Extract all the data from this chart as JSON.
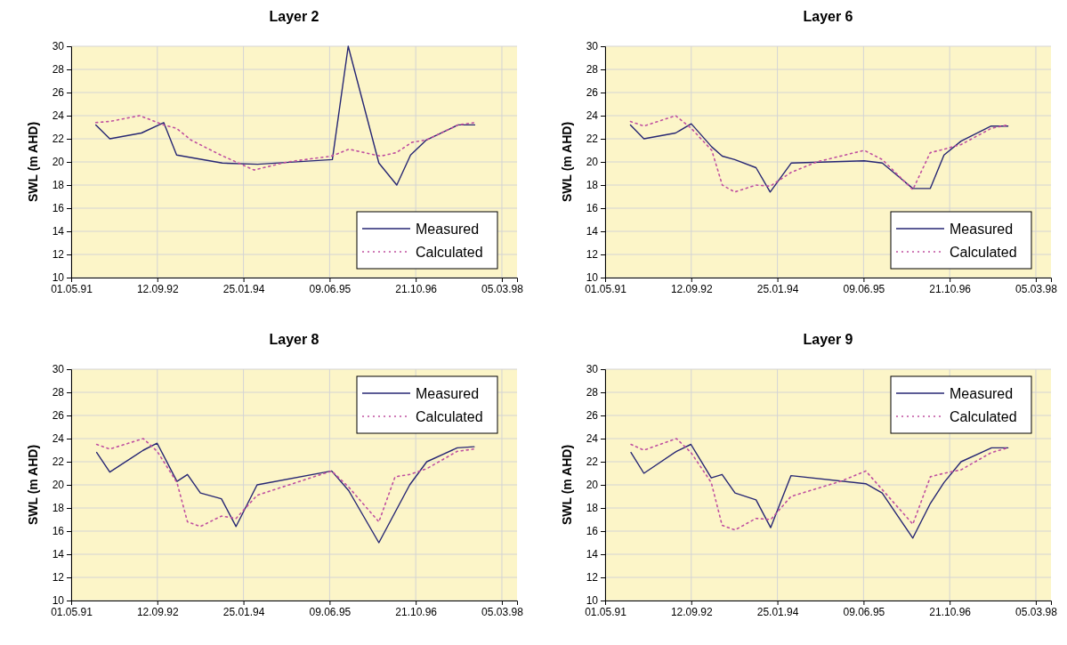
{
  "chart_data": [
    {
      "type": "line",
      "title": "Layer 2",
      "ylabel": "SWL (m AHD)",
      "xlim": [
        "1991-05-01",
        "1998-06-01"
      ],
      "ylim": [
        10,
        30
      ],
      "yticks": [
        10,
        12,
        14,
        16,
        18,
        20,
        22,
        24,
        26,
        28,
        30
      ],
      "xticks": [
        {
          "value": "1991-05-01",
          "label": "01.05.91"
        },
        {
          "value": "1992-09-12",
          "label": "12.09.92"
        },
        {
          "value": "1994-01-25",
          "label": "25.01.94"
        },
        {
          "value": "1995-06-09",
          "label": "09.06.95"
        },
        {
          "value": "1996-10-21",
          "label": "21.10.96"
        },
        {
          "value": "1998-03-05",
          "label": "05.03.98"
        }
      ],
      "grid": true,
      "legend": "bottom right",
      "series": [
        {
          "name": "Measured",
          "color": "#262673",
          "line_style": "solid",
          "x": [
            "1991-09-21",
            "1991-12-11",
            "1992-06-12",
            "1992-10-19",
            "1993-01-02",
            "1993-09-24",
            "1994-04-17",
            "1995-06-25",
            "1995-09-25",
            "1996-03-21",
            "1996-07-03",
            "1996-09-21",
            "1996-12-22",
            "1997-06-24",
            "1997-09-28"
          ],
          "values": [
            23.2,
            22.0,
            22.5,
            23.4,
            20.6,
            19.9,
            19.8,
            20.2,
            30.0,
            19.9,
            18.0,
            20.6,
            21.9,
            23.2,
            23.2
          ]
        },
        {
          "name": "Calculated",
          "color": "#c050a0",
          "line_style": "dotted",
          "x": [
            "1991-09-21",
            "1991-12-11",
            "1992-06-02",
            "1992-10-19",
            "1993-01-02",
            "1993-03-25",
            "1993-09-14",
            "1994-03-27",
            "1994-10-07",
            "1995-06-19",
            "1995-09-29",
            "1996-03-30",
            "1996-06-30",
            "1996-09-30",
            "1996-12-22",
            "1997-06-24",
            "1997-09-28"
          ],
          "values": [
            23.4,
            23.5,
            24.0,
            23.2,
            22.9,
            21.9,
            20.6,
            19.3,
            20.0,
            20.5,
            21.1,
            20.5,
            20.8,
            21.7,
            21.9,
            23.2,
            23.4
          ]
        }
      ]
    },
    {
      "type": "line",
      "title": "Layer 6",
      "ylabel": "SWL (m AHD)",
      "xlim": [
        "1991-05-01",
        "1998-06-01"
      ],
      "ylim": [
        10,
        30
      ],
      "yticks": [
        10,
        12,
        14,
        16,
        18,
        20,
        22,
        24,
        26,
        28,
        30
      ],
      "xticks": [
        {
          "value": "1991-05-01",
          "label": "01.05.91"
        },
        {
          "value": "1992-09-12",
          "label": "12.09.92"
        },
        {
          "value": "1994-01-25",
          "label": "25.01.94"
        },
        {
          "value": "1995-06-09",
          "label": "09.06.95"
        },
        {
          "value": "1996-10-21",
          "label": "21.10.96"
        },
        {
          "value": "1998-03-05",
          "label": "05.03.98"
        }
      ],
      "grid": true,
      "legend": "bottom right",
      "series": [
        {
          "name": "Measured",
          "color": "#262673",
          "line_style": "solid",
          "x": [
            "1991-09-25",
            "1991-12-12",
            "1992-06-13",
            "1992-09-12",
            "1993-01-09",
            "1993-03-11",
            "1993-05-22",
            "1993-09-23",
            "1993-12-14",
            "1994-04-15",
            "1995-06-13",
            "1995-09-26",
            "1996-03-21",
            "1996-06-30",
            "1996-09-18",
            "1996-12-26",
            "1997-06-19",
            "1997-09-24"
          ],
          "values": [
            23.2,
            22.0,
            22.5,
            23.3,
            21.3,
            20.5,
            20.2,
            19.5,
            17.4,
            19.9,
            20.1,
            19.9,
            17.7,
            17.7,
            20.6,
            21.8,
            23.1,
            23.1
          ]
        },
        {
          "name": "Calculated",
          "color": "#c050a0",
          "line_style": "dotted",
          "x": [
            "1991-09-25",
            "1991-12-12",
            "1992-06-13",
            "1992-09-12",
            "1993-01-09",
            "1993-03-11",
            "1993-05-22",
            "1993-09-23",
            "1993-12-14",
            "1994-04-15",
            "1994-09-10",
            "1995-06-13",
            "1995-09-26",
            "1996-03-21",
            "1996-06-30",
            "1996-09-18",
            "1996-12-26",
            "1997-06-19",
            "1997-09-24"
          ],
          "values": [
            23.5,
            23.1,
            24.0,
            22.9,
            21.0,
            18.0,
            17.4,
            18.0,
            17.9,
            19.1,
            20.0,
            21.0,
            20.2,
            17.6,
            20.8,
            21.1,
            21.5,
            22.9,
            23.2
          ]
        }
      ]
    },
    {
      "type": "line",
      "title": "Layer 8",
      "ylabel": "SWL (m AHD)",
      "xlim": [
        "1991-05-01",
        "1998-06-01"
      ],
      "ylim": [
        10,
        30
      ],
      "yticks": [
        10,
        12,
        14,
        16,
        18,
        20,
        22,
        24,
        26,
        28,
        30
      ],
      "xticks": [
        {
          "value": "1991-05-01",
          "label": "01.05.91"
        },
        {
          "value": "1992-09-12",
          "label": "12.09.92"
        },
        {
          "value": "1994-01-25",
          "label": "25.01.94"
        },
        {
          "value": "1995-06-09",
          "label": "09.06.95"
        },
        {
          "value": "1996-10-21",
          "label": "21.10.96"
        },
        {
          "value": "1998-03-05",
          "label": "05.03.98"
        }
      ],
      "grid": true,
      "legend": "top right",
      "series": [
        {
          "name": "Measured",
          "color": "#262673",
          "line_style": "solid",
          "x": [
            "1991-09-26",
            "1991-12-11",
            "1992-06-23",
            "1992-09-11",
            "1993-01-04",
            "1993-03-06",
            "1993-05-20",
            "1993-09-19",
            "1993-12-13",
            "1994-04-14",
            "1995-06-21",
            "1995-09-28",
            "1996-03-21",
            "1996-09-16",
            "1996-12-24",
            "1997-06-19",
            "1997-09-25"
          ],
          "values": [
            22.8,
            21.1,
            23.0,
            23.6,
            20.3,
            20.9,
            19.3,
            18.8,
            16.4,
            20.0,
            21.2,
            19.5,
            15.0,
            20.0,
            22.0,
            23.2,
            23.3
          ]
        },
        {
          "name": "Calculated",
          "color": "#c050a0",
          "line_style": "dotted",
          "x": [
            "1991-09-26",
            "1991-12-11",
            "1992-06-23",
            "1992-09-11",
            "1993-01-04",
            "1993-03-06",
            "1993-05-20",
            "1993-09-19",
            "1993-12-13",
            "1994-04-14",
            "1995-06-21",
            "1995-09-28",
            "1996-03-21",
            "1996-06-23",
            "1996-09-16",
            "1996-12-24",
            "1997-06-19",
            "1997-09-25"
          ],
          "values": [
            23.5,
            23.1,
            24.0,
            22.9,
            20.2,
            16.8,
            16.4,
            17.3,
            17.1,
            19.1,
            21.2,
            19.8,
            16.8,
            20.7,
            20.9,
            21.4,
            22.9,
            23.1
          ]
        }
      ]
    },
    {
      "type": "line",
      "title": "Layer 9",
      "ylabel": "SWL (m AHD)",
      "xlim": [
        "1991-05-01",
        "1998-06-01"
      ],
      "ylim": [
        10,
        30
      ],
      "yticks": [
        10,
        12,
        14,
        16,
        18,
        20,
        22,
        24,
        26,
        28,
        30
      ],
      "xticks": [
        {
          "value": "1991-05-01",
          "label": "01.05.91"
        },
        {
          "value": "1992-09-12",
          "label": "12.09.92"
        },
        {
          "value": "1994-01-25",
          "label": "25.01.94"
        },
        {
          "value": "1995-06-09",
          "label": "09.06.95"
        },
        {
          "value": "1996-10-21",
          "label": "21.10.96"
        },
        {
          "value": "1998-03-05",
          "label": "05.03.98"
        }
      ],
      "grid": true,
      "legend": "top right",
      "series": [
        {
          "name": "Measured",
          "color": "#262673",
          "line_style": "solid",
          "x": [
            "1991-09-28",
            "1991-12-12",
            "1992-06-18",
            "1992-09-10",
            "1993-01-06",
            "1993-03-10",
            "1993-05-24",
            "1993-09-23",
            "1993-12-17",
            "1994-04-14",
            "1995-06-22",
            "1995-09-25",
            "1996-03-21",
            "1996-07-01",
            "1996-09-18",
            "1996-12-26",
            "1997-06-21",
            "1997-09-24"
          ],
          "values": [
            22.8,
            21.0,
            22.9,
            23.5,
            20.6,
            20.9,
            19.3,
            18.7,
            16.3,
            20.8,
            20.1,
            19.3,
            15.4,
            18.4,
            20.2,
            22.0,
            23.2,
            23.2
          ]
        },
        {
          "name": "Calculated",
          "color": "#c050a0",
          "line_style": "dotted",
          "x": [
            "1991-09-28",
            "1991-12-12",
            "1992-06-18",
            "1992-09-10",
            "1993-01-06",
            "1993-03-10",
            "1993-05-24",
            "1993-09-23",
            "1993-12-17",
            "1994-04-14",
            "1995-01-25",
            "1995-06-22",
            "1995-09-25",
            "1996-03-21",
            "1996-07-01",
            "1996-09-18",
            "1996-12-26",
            "1997-06-21",
            "1997-09-24"
          ],
          "values": [
            23.5,
            23.0,
            24.0,
            22.8,
            20.2,
            16.5,
            16.1,
            17.1,
            17.0,
            19.0,
            20.3,
            21.2,
            19.6,
            16.6,
            20.7,
            21.0,
            21.3,
            22.8,
            23.2
          ]
        }
      ]
    }
  ]
}
